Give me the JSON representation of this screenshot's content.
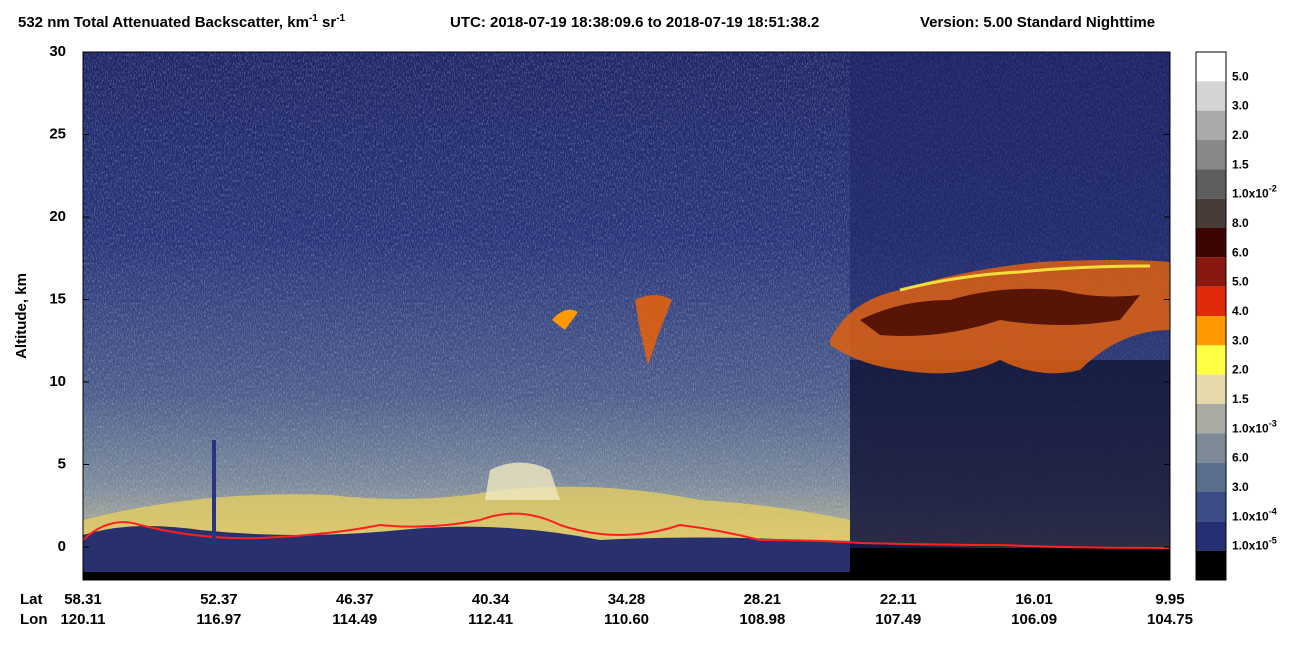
{
  "chart_data": {
    "type": "heatmap",
    "title": {
      "main": "532 nm Total Attenuated Backscatter, km",
      "unit_exp1": "-1",
      "unit_mid": " sr",
      "unit_exp2": "-1",
      "utc": "UTC:  2018-07-19 18:38:09.6  to  2018-07-19 18:51:38.2",
      "version": "Version: 5.00  Standard  Nighttime"
    },
    "y_label": "Altitude, km",
    "ylim": [
      -2,
      30
    ],
    "yticks": [
      0,
      5,
      10,
      15,
      20,
      25,
      30
    ],
    "x_row_labels": [
      "Lat",
      "Lon"
    ],
    "lat": [
      "58.31",
      "52.37",
      "46.37",
      "40.34",
      "34.28",
      "28.21",
      "22.11",
      "16.01",
      "9.95"
    ],
    "lon": [
      "120.11",
      "116.97",
      "114.49",
      "112.41",
      "110.60",
      "108.98",
      "107.49",
      "106.09",
      "104.75"
    ],
    "colorbar": {
      "colors": [
        "#ffffff",
        "#d4d4d4",
        "#aaaaaa",
        "#888888",
        "#5e5e5e",
        "#473c38",
        "#3c0400",
        "#8a1810",
        "#e02a0a",
        "#ff9900",
        "#ffff44",
        "#e6d9aa",
        "#a9aaa0",
        "#7d8a96",
        "#5a6e8e",
        "#3b4c86",
        "#252f74",
        "#000000"
      ],
      "labels": [
        {
          "base": "5.0"
        },
        {
          "base": "3.0"
        },
        {
          "base": "2.0"
        },
        {
          "base": "1.5"
        },
        {
          "base": "1.0x10",
          "exponent": "-2"
        },
        {
          "base": "8.0"
        },
        {
          "base": "6.0"
        },
        {
          "base": "5.0"
        },
        {
          "base": "4.0"
        },
        {
          "base": "3.0"
        },
        {
          "base": "2.0"
        },
        {
          "base": "1.5"
        },
        {
          "base": "1.0x10",
          "exponent": "-3"
        },
        {
          "base": "6.0"
        },
        {
          "base": "3.0"
        },
        {
          "base": "1.0x10",
          "exponent": "-4"
        },
        {
          "base": "1.0x10",
          "exponent": "-5"
        }
      ]
    }
  }
}
